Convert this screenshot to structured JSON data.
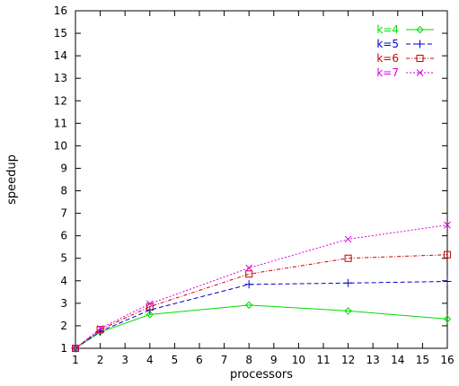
{
  "chart_data": {
    "type": "line",
    "title": "",
    "xlabel": "processors",
    "ylabel": "speedup",
    "xlim": [
      1,
      16
    ],
    "ylim": [
      1,
      16
    ],
    "xticks": [
      "1",
      "2",
      "3",
      "4",
      "5",
      "6",
      "7",
      "8",
      "9",
      "10",
      "11",
      "12",
      "13",
      "14",
      "15",
      "16"
    ],
    "yticks": [
      "1",
      "2",
      "3",
      "4",
      "5",
      "6",
      "7",
      "8",
      "9",
      "10",
      "11",
      "12",
      "13",
      "14",
      "15",
      "16"
    ],
    "grid": false,
    "legend_position": "top-right",
    "x": [
      1,
      2,
      4,
      8,
      12,
      16
    ],
    "series": [
      {
        "name": "k=4",
        "color": "#00dd00",
        "marker": "diamond",
        "dash": "solid",
        "values": [
          1.0,
          1.72,
          2.5,
          2.92,
          2.66,
          2.3
        ]
      },
      {
        "name": "k=5",
        "color": "#0000cc",
        "marker": "plus",
        "dash": "dashed",
        "values": [
          1.0,
          1.75,
          2.7,
          3.84,
          3.9,
          3.97
        ]
      },
      {
        "name": "k=6",
        "color": "#cc0000",
        "marker": "square",
        "dash": "dashdot",
        "values": [
          1.0,
          1.83,
          2.85,
          4.3,
          5.0,
          5.16
        ]
      },
      {
        "name": "k=7",
        "color": "#dd00dd",
        "marker": "x",
        "dash": "dotdash",
        "values": [
          1.0,
          1.88,
          2.98,
          4.57,
          5.85,
          6.48
        ]
      }
    ]
  }
}
